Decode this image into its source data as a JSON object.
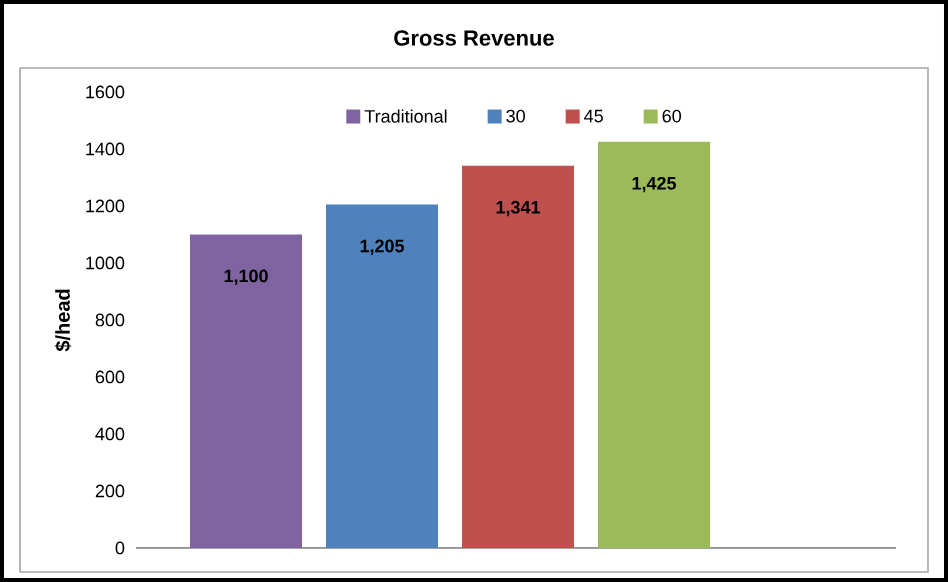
{
  "chart_data": {
    "type": "bar",
    "title": "Gross Revenue",
    "ylabel": "$/head",
    "categories": [
      null
    ],
    "series": [
      {
        "name": "Traditional",
        "color": "#8064a2",
        "values": [
          1100
        ],
        "value_labels": [
          "1,100"
        ]
      },
      {
        "name": "30",
        "color": "#4f81bd",
        "values": [
          1205
        ],
        "value_labels": [
          "1,205"
        ]
      },
      {
        "name": "45",
        "color": "#c0504d",
        "values": [
          1341
        ],
        "value_labels": [
          "1,341"
        ]
      },
      {
        "name": "60",
        "color": "#9bbb59",
        "values": [
          1425
        ],
        "value_labels": [
          "1,425"
        ]
      }
    ],
    "ylim": [
      0,
      1600
    ],
    "yticks": [
      0,
      200,
      400,
      600,
      800,
      1000,
      1200,
      1400,
      1600
    ],
    "legend": "top"
  }
}
